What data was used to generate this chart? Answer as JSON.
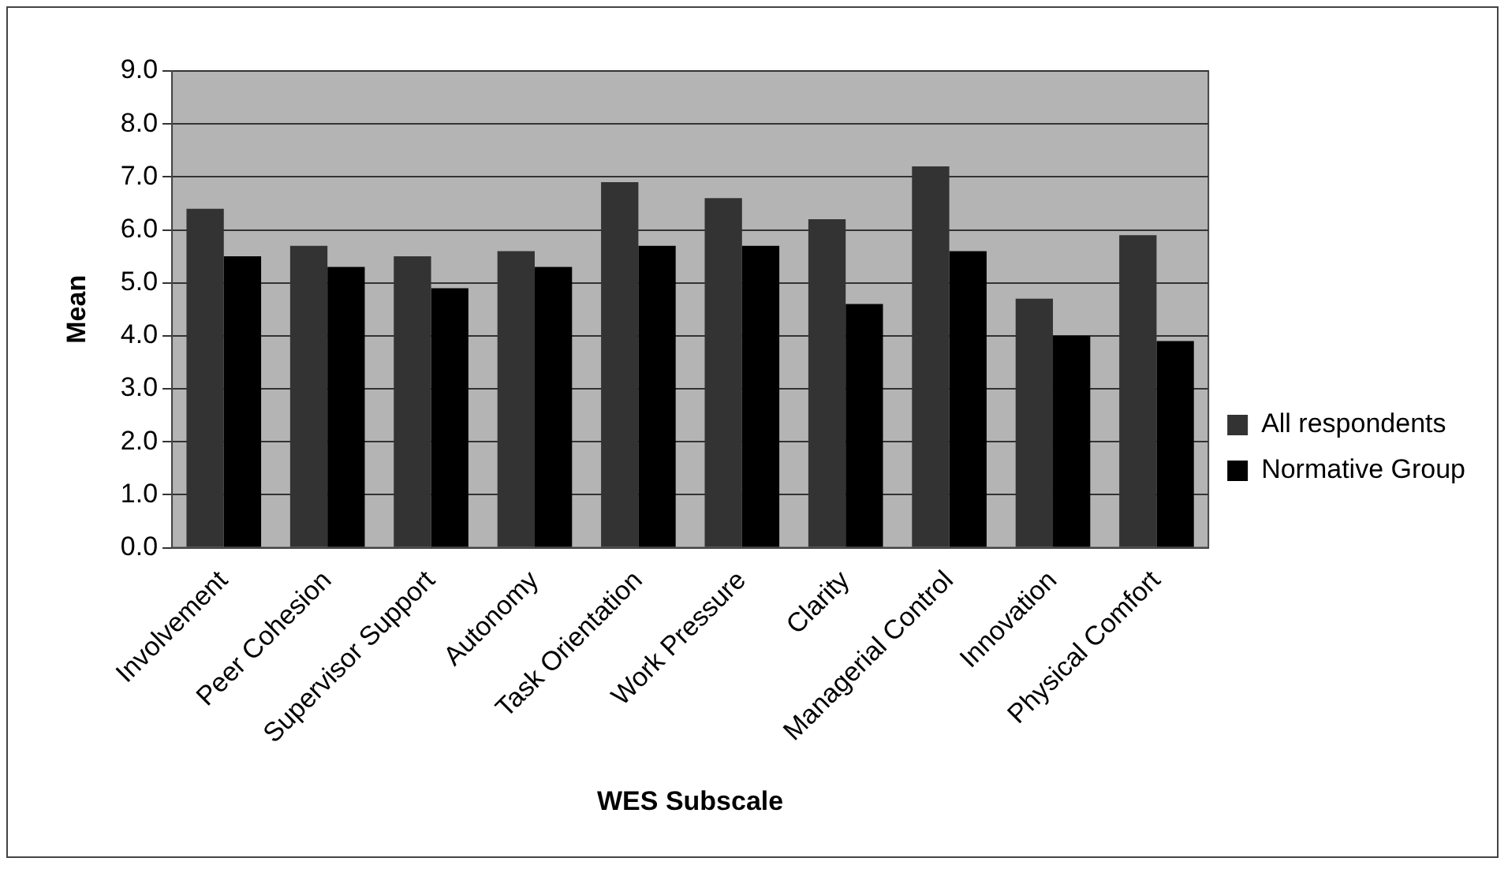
{
  "chart_data": {
    "type": "bar",
    "xlabel": "WES Subscale",
    "ylabel": "Mean",
    "categories": [
      "Involvement",
      "Peer Cohesion",
      "Supervisor Support",
      "Autonomy",
      "Task Orientation",
      "Work Pressure",
      "Clarity",
      "Managerial Control",
      "Innovation",
      "Physical Comfort"
    ],
    "series": [
      {
        "name": "All respondents",
        "color": "#333333",
        "values": [
          6.4,
          5.7,
          5.5,
          5.6,
          6.9,
          6.6,
          6.2,
          7.2,
          4.7,
          5.9
        ]
      },
      {
        "name": "Normative Group",
        "color": "#000000",
        "values": [
          5.5,
          5.3,
          4.9,
          5.3,
          5.7,
          5.7,
          4.6,
          5.6,
          4.0,
          3.9
        ]
      }
    ],
    "ylim": [
      0,
      9
    ],
    "yticks": [
      {
        "value": 0,
        "label": "0.0"
      },
      {
        "value": 1,
        "label": "1.0"
      },
      {
        "value": 2,
        "label": "2.0"
      },
      {
        "value": 3,
        "label": "3.0"
      },
      {
        "value": 4,
        "label": "4.0"
      },
      {
        "value": 5,
        "label": "5.0"
      },
      {
        "value": 6,
        "label": "6.0"
      },
      {
        "value": 7,
        "label": "7.0"
      },
      {
        "value": 8,
        "label": "8.0"
      },
      {
        "value": 9,
        "label": "9.0"
      }
    ],
    "grid": "y",
    "legend": "right"
  }
}
